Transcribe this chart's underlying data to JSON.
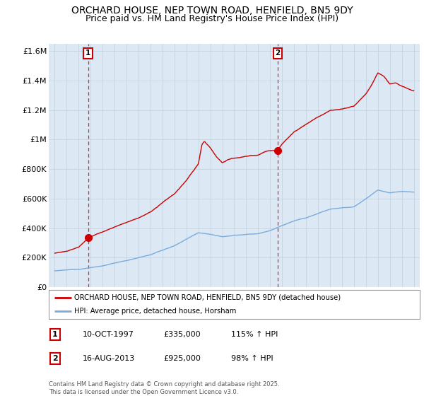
{
  "title": "ORCHARD HOUSE, NEP TOWN ROAD, HENFIELD, BN5 9DY",
  "subtitle": "Price paid vs. HM Land Registry's House Price Index (HPI)",
  "title_fontsize": 10,
  "subtitle_fontsize": 9,
  "ylabel_ticks": [
    "£0",
    "£200K",
    "£400K",
    "£600K",
    "£800K",
    "£1M",
    "£1.2M",
    "£1.4M",
    "£1.6M"
  ],
  "ytick_values": [
    0,
    200000,
    400000,
    600000,
    800000,
    1000000,
    1200000,
    1400000,
    1600000
  ],
  "ylim": [
    0,
    1650000
  ],
  "xlim_start": 1994.5,
  "xlim_end": 2025.5,
  "xticks": [
    1995,
    1996,
    1997,
    1998,
    1999,
    2000,
    2001,
    2002,
    2003,
    2004,
    2005,
    2006,
    2007,
    2008,
    2009,
    2010,
    2011,
    2012,
    2013,
    2014,
    2015,
    2016,
    2017,
    2018,
    2019,
    2020,
    2021,
    2022,
    2023,
    2024,
    2025
  ],
  "sale1_x": 1997.78,
  "sale1_y": 335000,
  "sale1_label": "1",
  "sale2_x": 2013.62,
  "sale2_y": 925000,
  "sale2_label": "2",
  "price_line_color": "#cc0000",
  "hpi_line_color": "#7aabdb",
  "annotation_box_color": "#cc0000",
  "plot_bg_color": "#dce9f5",
  "legend_label_price": "ORCHARD HOUSE, NEP TOWN ROAD, HENFIELD, BN5 9DY (detached house)",
  "legend_label_hpi": "HPI: Average price, detached house, Horsham",
  "table_row1": [
    "1",
    "10-OCT-1997",
    "£335,000",
    "115% ↑ HPI"
  ],
  "table_row2": [
    "2",
    "16-AUG-2013",
    "£925,000",
    "98% ↑ HPI"
  ],
  "footer": "Contains HM Land Registry data © Crown copyright and database right 2025.\nThis data is licensed under the Open Government Licence v3.0.",
  "bg_color": "#ffffff",
  "grid_color": "#c0d0e0"
}
